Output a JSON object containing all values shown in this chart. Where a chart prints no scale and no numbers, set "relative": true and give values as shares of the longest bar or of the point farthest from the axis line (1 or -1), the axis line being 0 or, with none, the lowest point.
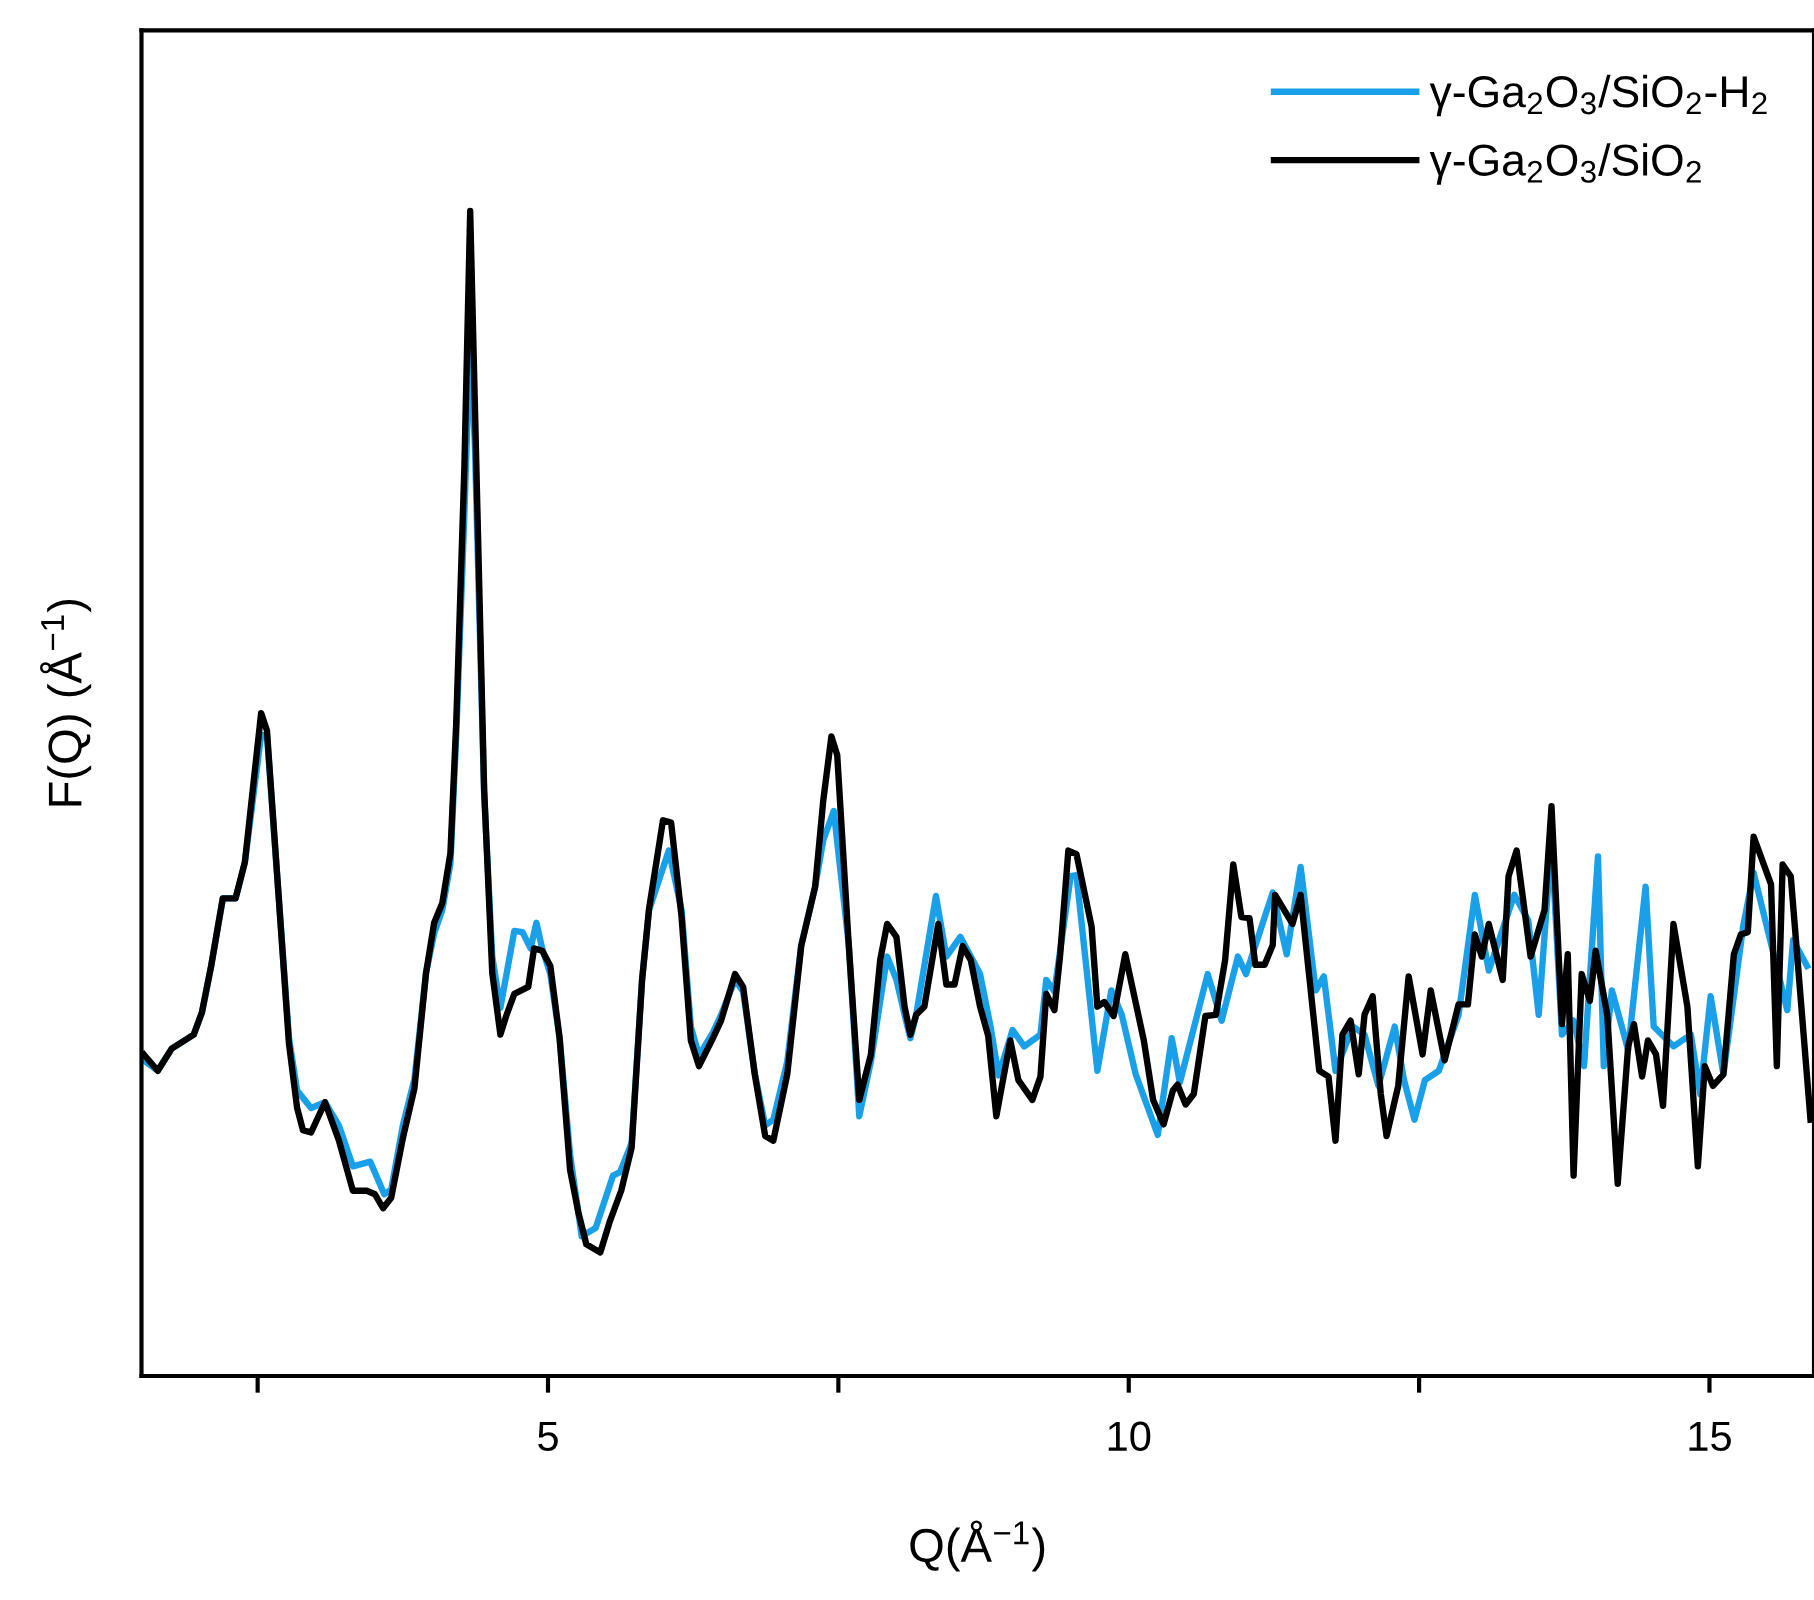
{
  "chart_data": {
    "type": "line",
    "relative": true,
    "xlabel": "Q(Å$^{−1}$)",
    "ylabel": "F(Q) (Å$^{−1}$)",
    "xlim": [
      1.5,
      15.9
    ],
    "xticks": [
      {
        "value": 2.5,
        "label": null
      },
      5,
      {
        "value": 7.5,
        "label": null
      },
      10,
      {
        "value": 12.5,
        "label": null
      },
      15
    ],
    "tick_labels": "x",
    "grid": false,
    "legend": "top right",
    "marker": "none",
    "line_style": "solid",
    "series": [
      {
        "name": "γ-Ga$_{2}$O$_{3}$/SiO$_{2}$-H$_{2}$",
        "color": "#1aa0e8",
        "x": [
          1.52,
          1.64,
          1.76,
          1.95,
          2.02,
          2.1,
          2.2,
          2.31,
          2.39,
          2.53,
          2.58,
          2.68,
          2.77,
          2.84,
          2.96,
          3.08,
          3.2,
          3.32,
          3.47,
          3.59,
          3.65,
          3.75,
          3.85,
          3.95,
          4.02,
          4.09,
          4.16,
          4.21,
          4.28,
          4.33,
          4.37,
          4.45,
          4.52,
          4.59,
          4.71,
          4.78,
          4.85,
          4.9,
          4.95,
          5.02,
          5.1,
          5.19,
          5.29,
          5.41,
          5.56,
          5.62,
          5.72,
          5.81,
          5.87,
          6.04,
          6.15,
          6.23,
          6.3,
          6.42,
          6.49,
          6.61,
          6.68,
          6.78,
          6.87,
          6.94,
          7.06,
          7.18,
          7.3,
          7.37,
          7.46,
          7.59,
          7.68,
          7.78,
          7.92,
          8.0,
          8.07,
          8.12,
          8.17,
          8.34,
          8.43,
          8.55,
          8.72,
          8.81,
          8.88,
          9.0,
          9.1,
          9.24,
          9.29,
          9.36,
          9.5,
          9.55,
          9.73,
          9.85,
          9.94,
          10.06,
          10.25,
          10.37,
          10.44,
          10.68,
          10.8,
          10.94,
          11.01,
          11.24,
          11.36,
          11.48,
          11.61,
          11.68,
          11.78,
          11.93,
          12.03,
          12.15,
          12.29,
          12.37,
          12.46,
          12.55,
          12.67,
          12.84,
          12.98,
          13.1,
          13.32,
          13.44,
          13.53,
          13.64,
          13.73,
          13.83,
          13.92,
          14.04,
          14.09,
          14.16,
          14.3,
          14.45,
          14.52,
          14.69,
          14.84,
          14.92,
          15.01,
          15.12,
          15.29,
          15.38,
          15.67,
          15.72,
          15.84
        ],
        "values": [
          0.271,
          0.262,
          0.281,
          0.293,
          0.312,
          0.352,
          0.41,
          0.41,
          0.441,
          0.55,
          0.55,
          0.413,
          0.29,
          0.245,
          0.23,
          0.235,
          0.215,
          0.18,
          0.184,
          0.156,
          0.16,
          0.215,
          0.255,
          0.346,
          0.38,
          0.4,
          0.44,
          0.55,
          0.74,
          0.892,
          0.8,
          0.5,
          0.36,
          0.316,
          0.382,
          0.381,
          0.367,
          0.389,
          0.367,
          0.345,
          0.29,
          0.19,
          0.12,
          0.127,
          0.172,
          0.175,
          0.2,
          0.34,
          0.4,
          0.451,
          0.4,
          0.3,
          0.275,
          0.295,
          0.31,
          0.34,
          0.33,
          0.26,
          0.215,
          0.22,
          0.27,
          0.37,
          0.42,
          0.46,
          0.485,
          0.37,
          0.223,
          0.27,
          0.36,
          0.34,
          0.31,
          0.29,
          0.31,
          0.412,
          0.36,
          0.377,
          0.345,
          0.3,
          0.258,
          0.297,
          0.283,
          0.293,
          0.34,
          0.33,
          0.429,
          0.43,
          0.262,
          0.331,
          0.31,
          0.259,
          0.207,
          0.29,
          0.252,
          0.345,
          0.305,
          0.36,
          0.345,
          0.415,
          0.362,
          0.437,
          0.331,
          0.343,
          0.262,
          0.3,
          0.293,
          0.249,
          0.3,
          0.254,
          0.22,
          0.254,
          0.262,
          0.31,
          0.413,
          0.348,
          0.413,
          0.391,
          0.31,
          0.46,
          0.293,
          0.305,
          0.266,
          0.446,
          0.266,
          0.331,
          0.28,
          0.42,
          0.3,
          0.283,
          0.293,
          0.242,
          0.326,
          0.259,
          0.386,
          0.432,
          0.314,
          0.374,
          0.352
        ]
      },
      {
        "name": "γ-Ga$_{2}$O$_{3}$/SiO$_{2}$",
        "color": "#000000",
        "x": [
          1.52,
          1.64,
          1.76,
          1.95,
          2.02,
          2.1,
          2.2,
          2.31,
          2.39,
          2.53,
          2.58,
          2.68,
          2.77,
          2.84,
          2.89,
          2.96,
          3.08,
          3.2,
          3.32,
          3.44,
          3.51,
          3.58,
          3.65,
          3.75,
          3.85,
          3.95,
          4.02,
          4.09,
          4.16,
          4.21,
          4.28,
          4.33,
          4.37,
          4.45,
          4.52,
          4.59,
          4.64,
          4.71,
          4.83,
          4.88,
          4.95,
          5.02,
          5.1,
          5.19,
          5.26,
          5.33,
          5.45,
          5.53,
          5.63,
          5.72,
          5.81,
          5.87,
          5.99,
          6.06,
          6.15,
          6.23,
          6.3,
          6.42,
          6.49,
          6.61,
          6.68,
          6.78,
          6.87,
          6.94,
          7.06,
          7.18,
          7.3,
          7.37,
          7.44,
          7.49,
          7.59,
          7.68,
          7.78,
          7.86,
          7.92,
          8.0,
          8.07,
          8.12,
          8.17,
          8.24,
          8.36,
          8.43,
          8.5,
          8.57,
          8.64,
          8.72,
          8.79,
          8.86,
          8.98,
          9.05,
          9.17,
          9.24,
          9.29,
          9.36,
          9.41,
          9.48,
          9.55,
          9.68,
          9.73,
          9.79,
          9.87,
          9.97,
          10.13,
          10.21,
          10.3,
          10.38,
          10.42,
          10.49,
          10.56,
          10.66,
          10.75,
          10.83,
          10.9,
          10.97,
          11.04,
          11.09,
          11.17,
          11.24,
          11.26,
          11.41,
          11.48,
          11.64,
          11.72,
          11.78,
          11.84,
          11.91,
          11.98,
          12.03,
          12.1,
          12.17,
          12.22,
          12.32,
          12.41,
          12.53,
          12.6,
          12.72,
          12.84,
          12.92,
          12.98,
          13.04,
          13.1,
          13.22,
          13.27,
          13.34,
          13.46,
          13.58,
          13.64,
          13.73,
          13.78,
          13.83,
          13.9,
          13.97,
          14.02,
          14.12,
          14.21,
          14.3,
          14.35,
          14.42,
          14.47,
          14.54,
          14.6,
          14.69,
          14.81,
          14.9,
          14.96,
          15.03,
          15.12,
          15.21,
          15.27,
          15.33,
          15.38,
          15.53,
          15.58,
          15.63,
          15.7,
          15.87
        ],
        "values": [
          0.276,
          0.262,
          0.281,
          0.293,
          0.312,
          0.352,
          0.41,
          0.41,
          0.441,
          0.569,
          0.554,
          0.413,
          0.285,
          0.23,
          0.211,
          0.209,
          0.235,
          0.202,
          0.159,
          0.159,
          0.156,
          0.144,
          0.153,
          0.204,
          0.247,
          0.346,
          0.389,
          0.406,
          0.449,
          0.561,
          0.78,
          1.0,
          0.835,
          0.504,
          0.346,
          0.293,
          0.309,
          0.328,
          0.334,
          0.367,
          0.365,
          0.352,
          0.29,
          0.177,
          0.141,
          0.113,
          0.106,
          0.132,
          0.159,
          0.196,
          0.34,
          0.401,
          0.477,
          0.475,
          0.394,
          0.288,
          0.266,
          0.29,
          0.305,
          0.345,
          0.334,
          0.259,
          0.206,
          0.202,
          0.259,
          0.369,
          0.42,
          0.494,
          0.549,
          0.533,
          0.369,
          0.237,
          0.276,
          0.357,
          0.388,
          0.377,
          0.317,
          0.293,
          0.31,
          0.317,
          0.388,
          0.336,
          0.336,
          0.369,
          0.357,
          0.317,
          0.292,
          0.223,
          0.288,
          0.254,
          0.237,
          0.257,
          0.328,
          0.314,
          0.362,
          0.451,
          0.448,
          0.386,
          0.317,
          0.321,
          0.309,
          0.362,
          0.288,
          0.237,
          0.216,
          0.245,
          0.25,
          0.233,
          0.242,
          0.309,
          0.31,
          0.357,
          0.439,
          0.394,
          0.393,
          0.353,
          0.353,
          0.37,
          0.413,
          0.388,
          0.413,
          0.262,
          0.257,
          0.202,
          0.293,
          0.305,
          0.259,
          0.31,
          0.326,
          0.242,
          0.206,
          0.249,
          0.343,
          0.276,
          0.331,
          0.271,
          0.319,
          0.319,
          0.379,
          0.36,
          0.388,
          0.34,
          0.429,
          0.451,
          0.36,
          0.4,
          0.489,
          0.302,
          0.362,
          0.172,
          0.345,
          0.322,
          0.365,
          0.31,
          0.165,
          0.283,
          0.302,
          0.257,
          0.288,
          0.276,
          0.232,
          0.388,
          0.317,
          0.18,
          0.266,
          0.249,
          0.259,
          0.362,
          0.379,
          0.381,
          0.463,
          0.422,
          0.266,
          0.439,
          0.429,
          0.22
        ]
      }
    ]
  }
}
